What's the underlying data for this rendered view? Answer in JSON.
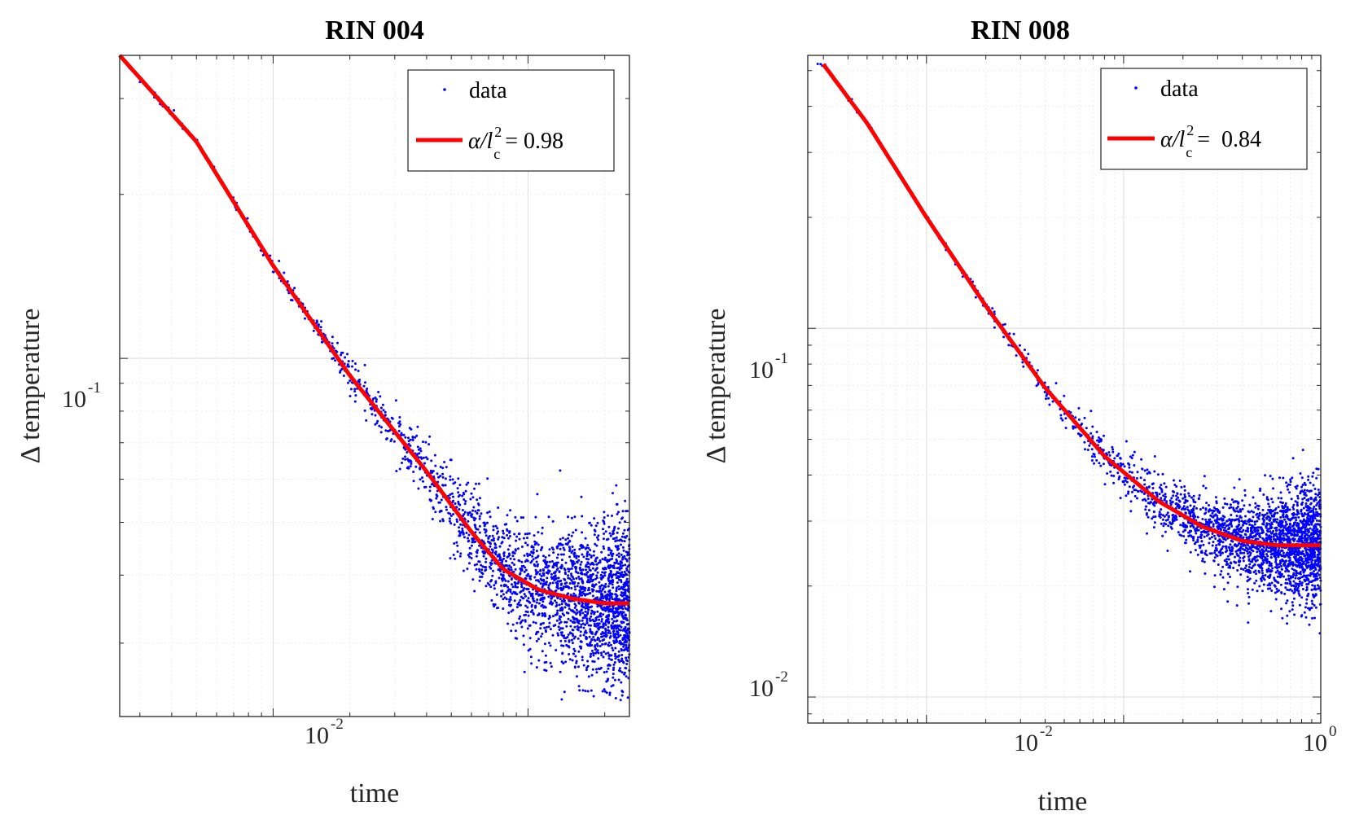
{
  "chart_data": [
    {
      "type": "scatter",
      "title": "RIN 004",
      "xlabel": "time",
      "ylabel": "Δ temperature",
      "xscale": "log",
      "yscale": "log",
      "xlim": [
        0.0025,
        0.25
      ],
      "ylim": [
        0.022,
        0.36
      ],
      "grid": true,
      "legend_position": "top-right",
      "x_ticks": [
        {
          "base": "10",
          "exp": "-2",
          "value": 0.01
        }
      ],
      "y_ticks": [
        {
          "base": "10",
          "exp": "-1",
          "value": 0.1
        }
      ],
      "series": [
        {
          "name": "data",
          "kind": "scatter",
          "color": "#0000ff",
          "model": "fit",
          "noise_seed": 11
        },
        {
          "name": "fit",
          "kind": "line",
          "color": "#ff0000",
          "equation": "α/l²_c",
          "value_label": "= 0.98"
        }
      ],
      "fit_curve": [
        {
          "x": 0.0025,
          "y": 0.36
        },
        {
          "x": 0.005,
          "y": 0.25
        },
        {
          "x": 0.01,
          "y": 0.148
        },
        {
          "x": 0.02,
          "y": 0.093
        },
        {
          "x": 0.04,
          "y": 0.062
        },
        {
          "x": 0.06,
          "y": 0.048
        },
        {
          "x": 0.08,
          "y": 0.041
        },
        {
          "x": 0.11,
          "y": 0.0376
        },
        {
          "x": 0.15,
          "y": 0.0362
        },
        {
          "x": 0.2,
          "y": 0.0355
        },
        {
          "x": 0.25,
          "y": 0.0355
        }
      ],
      "legend": {
        "data_label": "data",
        "fit_prefix": "α/l",
        "fit_sup": "2",
        "fit_sub": "c",
        "fit_value": "= 0.98"
      }
    },
    {
      "type": "scatter",
      "title": "RIN 008",
      "xlabel": "time",
      "ylabel": "Δ temperature",
      "xscale": "log",
      "yscale": "log",
      "xlim": [
        0.0025,
        1
      ],
      "ylim": [
        0.0085,
        0.55
      ],
      "grid": true,
      "legend_position": "top-right",
      "x_ticks": [
        {
          "base": "10",
          "exp": "-2",
          "value": 0.01
        },
        {
          "base": "10",
          "exp": "0",
          "value": 1
        }
      ],
      "y_ticks": [
        {
          "base": "10",
          "exp": "-1",
          "value": 0.1
        },
        {
          "base": "10",
          "exp": "-2",
          "value": 0.01
        }
      ],
      "series": [
        {
          "name": "data",
          "kind": "scatter",
          "color": "#0000ff",
          "model": "fit",
          "noise_seed": 23
        },
        {
          "name": "fit",
          "kind": "line",
          "color": "#ff0000",
          "equation": "α/l²_c",
          "value_label": "= 0.84"
        }
      ],
      "fit_curve": [
        {
          "x": 0.003,
          "y": 0.52
        },
        {
          "x": 0.005,
          "y": 0.36
        },
        {
          "x": 0.01,
          "y": 0.2
        },
        {
          "x": 0.02,
          "y": 0.115
        },
        {
          "x": 0.04,
          "y": 0.069
        },
        {
          "x": 0.08,
          "y": 0.045
        },
        {
          "x": 0.15,
          "y": 0.034
        },
        {
          "x": 0.25,
          "y": 0.029
        },
        {
          "x": 0.4,
          "y": 0.0265
        },
        {
          "x": 0.6,
          "y": 0.0258
        },
        {
          "x": 1.0,
          "y": 0.0258
        }
      ],
      "legend": {
        "data_label": "data",
        "fit_prefix": "α/l",
        "fit_sup": "2",
        "fit_sub": "c",
        "fit_value": "=  0.84"
      }
    }
  ]
}
